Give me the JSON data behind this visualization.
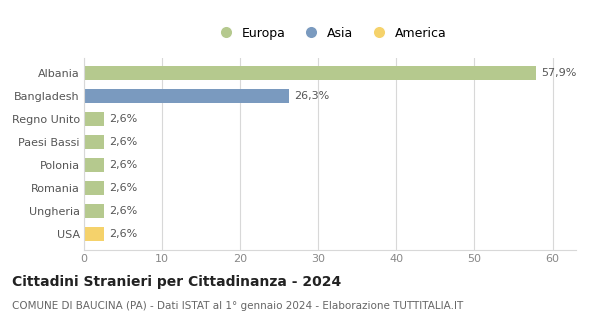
{
  "categories": [
    "Albania",
    "Bangladesh",
    "Regno Unito",
    "Paesi Bassi",
    "Polonia",
    "Romania",
    "Ungheria",
    "USA"
  ],
  "values": [
    57.9,
    26.3,
    2.6,
    2.6,
    2.6,
    2.6,
    2.6,
    2.6
  ],
  "labels": [
    "57,9%",
    "26,3%",
    "2,6%",
    "2,6%",
    "2,6%",
    "2,6%",
    "2,6%",
    "2,6%"
  ],
  "colors": [
    "#b5c98e",
    "#7a9abf",
    "#b5c98e",
    "#b5c98e",
    "#b5c98e",
    "#b5c98e",
    "#b5c98e",
    "#f5d26b"
  ],
  "legend_labels": [
    "Europa",
    "Asia",
    "America"
  ],
  "legend_colors": [
    "#b5c98e",
    "#7a9abf",
    "#f5d26b"
  ],
  "title": "Cittadini Stranieri per Cittadinanza - 2024",
  "subtitle": "COMUNE DI BAUCINA (PA) - Dati ISTAT al 1° gennaio 2024 - Elaborazione TUTTITALIA.IT",
  "xlim": [
    0,
    63
  ],
  "xticks": [
    0,
    10,
    20,
    30,
    40,
    50,
    60
  ],
  "background_color": "#ffffff",
  "grid_color": "#d8d8d8",
  "title_fontsize": 10,
  "subtitle_fontsize": 7.5,
  "label_fontsize": 8,
  "tick_fontsize": 8
}
